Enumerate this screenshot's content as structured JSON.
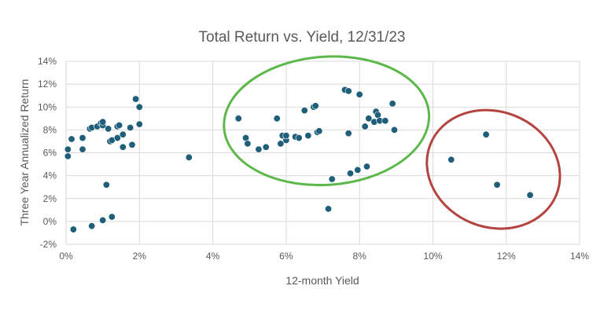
{
  "chart_data": {
    "type": "scatter",
    "title": "Total Return vs. Yield, 12/31/23",
    "xlabel": "12-month Yield",
    "ylabel": "Three Year Annualized Return",
    "xlim": [
      0,
      14
    ],
    "ylim": [
      -2,
      14
    ],
    "x_ticks": [
      "0%",
      "2%",
      "4%",
      "6%",
      "8%",
      "10%",
      "12%",
      "14%"
    ],
    "y_ticks": [
      "-2%",
      "0%",
      "2%",
      "4%",
      "6%",
      "8%",
      "10%",
      "12%",
      "14%"
    ],
    "grid": "vertical-and-horizontal",
    "legend": "none",
    "colors": {
      "point": "#1f5f7a",
      "green_ellipse": "#5cb84a",
      "red_ellipse": "#b44442",
      "grid": "#d9d9d9",
      "text": "#595959"
    },
    "points": [
      {
        "x": 0.05,
        "y": 6.3
      },
      {
        "x": 0.05,
        "y": 5.7
      },
      {
        "x": 0.15,
        "y": 7.2
      },
      {
        "x": 0.2,
        "y": -0.7
      },
      {
        "x": 0.45,
        "y": 7.3
      },
      {
        "x": 0.45,
        "y": 6.3
      },
      {
        "x": 0.65,
        "y": 8.1
      },
      {
        "x": 0.7,
        "y": 8.2
      },
      {
        "x": 0.7,
        "y": -0.4
      },
      {
        "x": 0.85,
        "y": 8.3
      },
      {
        "x": 0.95,
        "y": 8.6
      },
      {
        "x": 1.0,
        "y": 8.4
      },
      {
        "x": 1.0,
        "y": 8.7
      },
      {
        "x": 1.0,
        "y": 0.1
      },
      {
        "x": 1.1,
        "y": 3.2
      },
      {
        "x": 1.15,
        "y": 8.1
      },
      {
        "x": 1.2,
        "y": 7.0
      },
      {
        "x": 1.25,
        "y": 7.1
      },
      {
        "x": 1.25,
        "y": 0.4
      },
      {
        "x": 1.4,
        "y": 8.3
      },
      {
        "x": 1.45,
        "y": 8.4
      },
      {
        "x": 1.4,
        "y": 7.3
      },
      {
        "x": 1.55,
        "y": 6.5
      },
      {
        "x": 1.55,
        "y": 7.6
      },
      {
        "x": 1.75,
        "y": 8.2
      },
      {
        "x": 1.8,
        "y": 6.7
      },
      {
        "x": 1.9,
        "y": 10.7
      },
      {
        "x": 2.0,
        "y": 10.0
      },
      {
        "x": 2.0,
        "y": 8.5
      },
      {
        "x": 3.35,
        "y": 5.6
      },
      {
        "x": 4.7,
        "y": 9.0
      },
      {
        "x": 4.9,
        "y": 7.3
      },
      {
        "x": 4.95,
        "y": 6.8
      },
      {
        "x": 5.25,
        "y": 6.3
      },
      {
        "x": 5.45,
        "y": 6.5
      },
      {
        "x": 5.75,
        "y": 9.0
      },
      {
        "x": 5.85,
        "y": 6.8
      },
      {
        "x": 5.9,
        "y": 7.5
      },
      {
        "x": 6.0,
        "y": 7.1
      },
      {
        "x": 6.0,
        "y": 7.5
      },
      {
        "x": 6.25,
        "y": 7.4
      },
      {
        "x": 6.35,
        "y": 7.3
      },
      {
        "x": 6.5,
        "y": 9.7
      },
      {
        "x": 6.6,
        "y": 7.5
      },
      {
        "x": 6.75,
        "y": 10.0
      },
      {
        "x": 6.8,
        "y": 10.1
      },
      {
        "x": 6.85,
        "y": 7.8
      },
      {
        "x": 6.9,
        "y": 7.9
      },
      {
        "x": 7.15,
        "y": 1.1
      },
      {
        "x": 7.25,
        "y": 3.7
      },
      {
        "x": 7.6,
        "y": 11.5
      },
      {
        "x": 7.7,
        "y": 11.4
      },
      {
        "x": 7.7,
        "y": 7.7
      },
      {
        "x": 7.75,
        "y": 4.2
      },
      {
        "x": 7.95,
        "y": 4.5
      },
      {
        "x": 8.0,
        "y": 11.1
      },
      {
        "x": 8.15,
        "y": 8.3
      },
      {
        "x": 8.2,
        "y": 4.8
      },
      {
        "x": 8.25,
        "y": 9.0
      },
      {
        "x": 8.4,
        "y": 8.7
      },
      {
        "x": 8.45,
        "y": 9.6
      },
      {
        "x": 8.5,
        "y": 9.3
      },
      {
        "x": 8.55,
        "y": 8.8
      },
      {
        "x": 8.7,
        "y": 8.8
      },
      {
        "x": 8.9,
        "y": 10.3
      },
      {
        "x": 8.95,
        "y": 8.0
      },
      {
        "x": 10.5,
        "y": 5.4
      },
      {
        "x": 11.45,
        "y": 7.6
      },
      {
        "x": 11.75,
        "y": 3.2
      },
      {
        "x": 12.65,
        "y": 2.3
      }
    ],
    "annotations": [
      {
        "shape": "ellipse",
        "color": "green",
        "x_range": [
          4.3,
          9.9
        ],
        "y_range": [
          3.2,
          14.4
        ]
      },
      {
        "shape": "ellipse",
        "color": "red",
        "x_range": [
          9.8,
          13.5
        ],
        "y_range": [
          -0.5,
          9.6
        ]
      }
    ]
  }
}
